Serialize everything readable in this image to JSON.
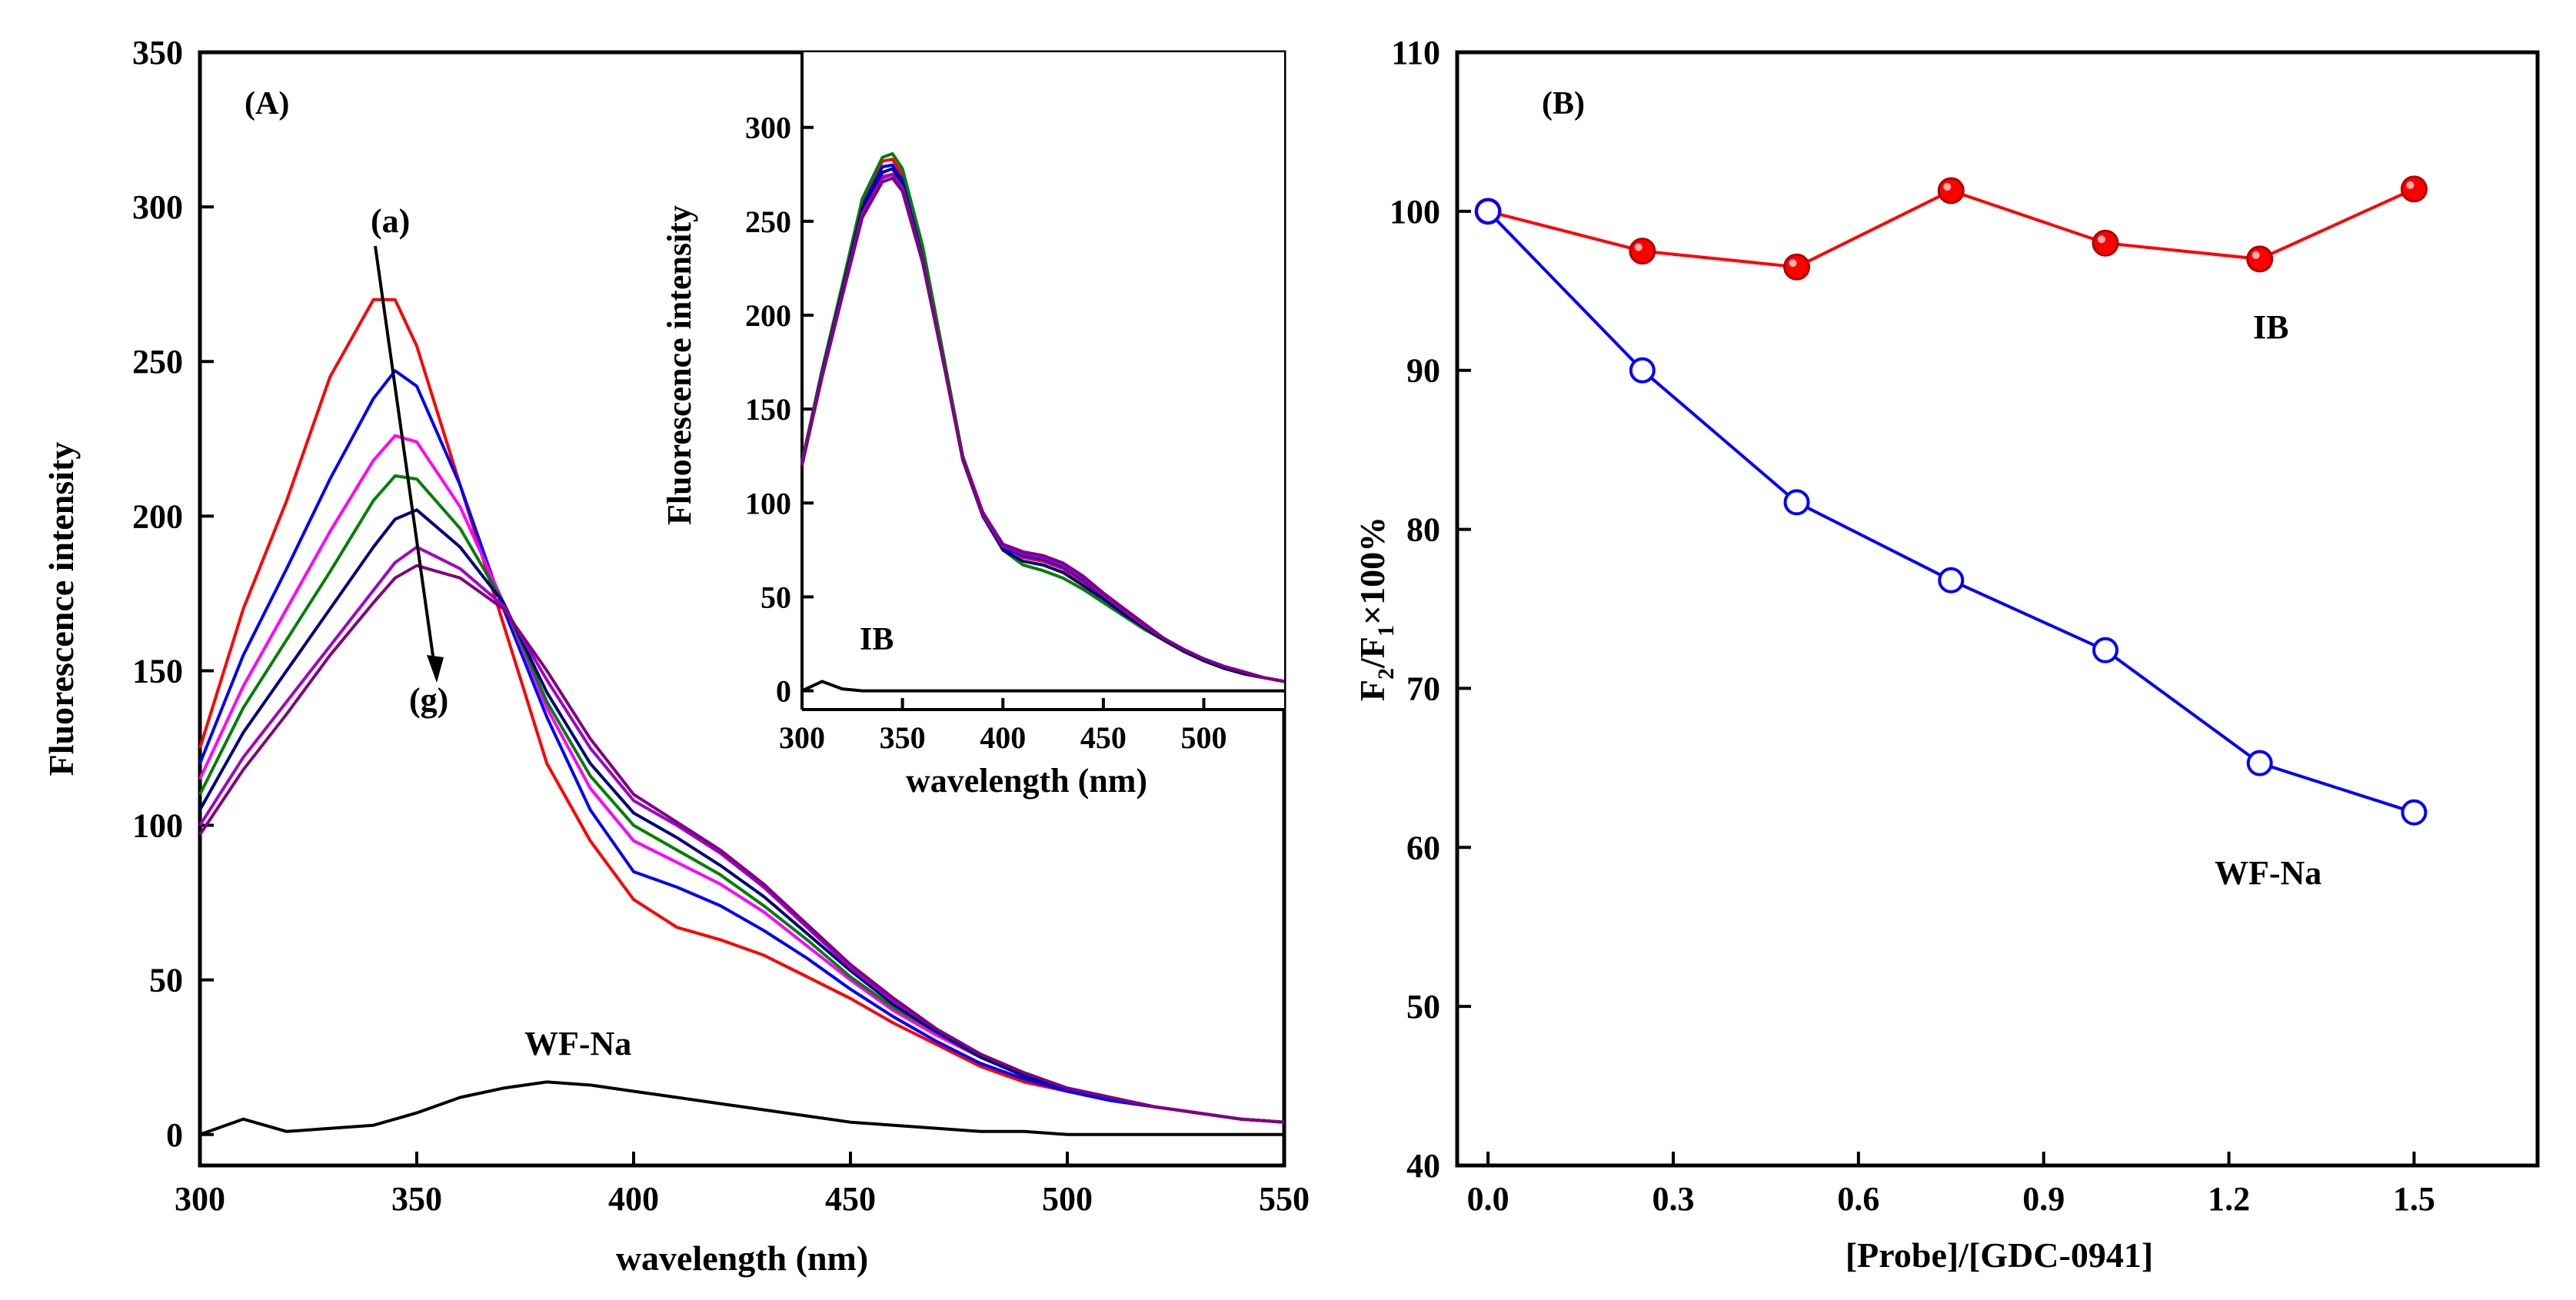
{
  "colors": {
    "a": "#ff0000",
    "b": "#0000ff",
    "c": "#ff00ff",
    "d": "#008000",
    "e": "#000080",
    "f": "#a000c8",
    "g": "#800080",
    "wfna": "#000000",
    "ib_series": "#ff0000",
    "wfna_series": "#0000ff"
  },
  "chart_data": [
    {
      "panel": "A",
      "type": "line",
      "panel_label": "(A)",
      "title": "",
      "xlabel": "wavelength (nm)",
      "ylabel": "Fluorescence intensity",
      "xlim": [
        300,
        550
      ],
      "ylim": [
        -10,
        350
      ],
      "xticks": [
        300,
        350,
        400,
        450,
        500,
        550
      ],
      "yticks": [
        0,
        50,
        100,
        150,
        200,
        250,
        300,
        350
      ],
      "grid": false,
      "annotations": {
        "start": "(a)",
        "end": "(g)",
        "probe": "WF-Na"
      },
      "x": [
        300,
        310,
        320,
        330,
        340,
        345,
        350,
        360,
        370,
        380,
        390,
        400,
        410,
        420,
        430,
        440,
        450,
        460,
        470,
        480,
        490,
        500,
        510,
        520,
        530,
        540,
        550
      ],
      "series": [
        {
          "name": "(a)",
          "color_key": "a",
          "values": [
            125,
            170,
            205,
            245,
            270,
            270,
            255,
            210,
            165,
            120,
            95,
            76,
            67,
            63,
            58,
            51,
            44,
            36,
            29,
            22,
            17,
            14,
            11,
            9,
            7,
            5,
            4
          ]
        },
        {
          "name": "(b)",
          "color_key": "b",
          "values": [
            120,
            155,
            183,
            212,
            238,
            247,
            242,
            210,
            170,
            135,
            105,
            85,
            80,
            74,
            66,
            57,
            47,
            38,
            30,
            23,
            18,
            14,
            11,
            9,
            7,
            5,
            4
          ]
        },
        {
          "name": "(c)",
          "color_key": "c",
          "values": [
            115,
            145,
            170,
            195,
            218,
            226,
            224,
            203,
            172,
            138,
            112,
            95,
            88,
            81,
            72,
            61,
            50,
            40,
            32,
            25,
            19,
            15,
            12,
            9,
            7,
            5,
            4
          ]
        },
        {
          "name": "(d)",
          "color_key": "d",
          "values": [
            110,
            138,
            160,
            182,
            205,
            213,
            212,
            196,
            172,
            140,
            116,
            100,
            92,
            84,
            74,
            63,
            51,
            41,
            33,
            25,
            19,
            15,
            12,
            9,
            7,
            5,
            4
          ]
        },
        {
          "name": "(e)",
          "color_key": "e",
          "values": [
            105,
            130,
            150,
            170,
            190,
            199,
            202,
            190,
            172,
            143,
            120,
            104,
            96,
            87,
            77,
            65,
            53,
            42,
            33,
            25,
            19,
            15,
            12,
            9,
            7,
            5,
            4
          ]
        },
        {
          "name": "(f)",
          "color_key": "f",
          "values": [
            100,
            122,
            140,
            158,
            176,
            185,
            190,
            183,
            171,
            147,
            125,
            108,
            100,
            91,
            80,
            67,
            54,
            43,
            34,
            26,
            20,
            15,
            12,
            9,
            7,
            5,
            4
          ]
        },
        {
          "name": "(g)",
          "color_key": "g",
          "values": [
            97,
            118,
            136,
            155,
            172,
            180,
            184,
            180,
            170,
            150,
            128,
            110,
            101,
            92,
            81,
            68,
            55,
            44,
            34,
            26,
            20,
            15,
            12,
            9,
            7,
            5,
            4
          ]
        },
        {
          "name": "WF-Na",
          "color_key": "wfna",
          "values": [
            0,
            5,
            1,
            2,
            3,
            5,
            7,
            12,
            15,
            17,
            16,
            14,
            12,
            10,
            8,
            6,
            4,
            3,
            2,
            1,
            1,
            0,
            0,
            0,
            0,
            0,
            0
          ]
        }
      ]
    },
    {
      "panel": "A-inset",
      "type": "line",
      "title": "",
      "xlabel": "wavelength (nm)",
      "ylabel": "Fluorescence intensity",
      "xlim": [
        300,
        540
      ],
      "ylim": [
        -10,
        340
      ],
      "xticks": [
        300,
        350,
        400,
        450,
        500
      ],
      "yticks": [
        0,
        50,
        100,
        150,
        200,
        250,
        300
      ],
      "grid": false,
      "annotations": {
        "probe": "IB"
      },
      "x": [
        300,
        310,
        320,
        330,
        340,
        345,
        350,
        360,
        370,
        380,
        390,
        400,
        410,
        420,
        430,
        440,
        450,
        460,
        470,
        480,
        490,
        500,
        510,
        520,
        530,
        540
      ],
      "series": [
        {
          "name": "(a)",
          "color_key": "a",
          "values": [
            122,
            170,
            215,
            260,
            282,
            283,
            275,
            235,
            180,
            125,
            95,
            77,
            71,
            69,
            65,
            58,
            50,
            42,
            35,
            28,
            22,
            17,
            13,
            10,
            7,
            5
          ]
        },
        {
          "name": "(b)",
          "color_key": "b",
          "values": [
            122,
            169,
            214,
            258,
            279,
            280,
            272,
            232,
            178,
            124,
            94,
            76,
            72,
            70,
            66,
            59,
            51,
            43,
            35,
            28,
            22,
            17,
            13,
            10,
            7,
            5
          ]
        },
        {
          "name": "(c)",
          "color_key": "c",
          "values": [
            121,
            168,
            212,
            255,
            274,
            275,
            268,
            230,
            178,
            125,
            95,
            78,
            74,
            72,
            68,
            61,
            52,
            44,
            36,
            28,
            22,
            17,
            13,
            10,
            7,
            5
          ]
        },
        {
          "name": "(d)",
          "color_key": "d",
          "values": [
            122,
            171,
            216,
            262,
            284,
            286,
            278,
            237,
            181,
            125,
            94,
            75,
            67,
            64,
            60,
            54,
            47,
            40,
            33,
            27,
            21,
            16,
            12,
            9,
            7,
            5
          ]
        },
        {
          "name": "(e)",
          "color_key": "e",
          "values": [
            121,
            169,
            213,
            257,
            276,
            278,
            270,
            230,
            177,
            123,
            93,
            75,
            69,
            67,
            63,
            56,
            49,
            41,
            34,
            27,
            21,
            16,
            12,
            9,
            7,
            5
          ]
        },
        {
          "name": "(f)",
          "color_key": "f",
          "values": [
            121,
            168,
            211,
            254,
            273,
            275,
            268,
            229,
            177,
            124,
            94,
            77,
            73,
            71,
            67,
            60,
            51,
            43,
            35,
            28,
            22,
            17,
            13,
            10,
            7,
            5
          ]
        },
        {
          "name": "(g)",
          "color_key": "g",
          "values": [
            120,
            167,
            210,
            252,
            271,
            273,
            266,
            228,
            177,
            124,
            95,
            78,
            74,
            72,
            68,
            61,
            52,
            44,
            36,
            28,
            22,
            17,
            13,
            10,
            7,
            5
          ]
        },
        {
          "name": "IB",
          "color_key": "wfna",
          "values": [
            0,
            5,
            1,
            0,
            0,
            0,
            0,
            0,
            0,
            0,
            0,
            0,
            0,
            0,
            0,
            0,
            0,
            0,
            0,
            0,
            0,
            0,
            0,
            0,
            0,
            0
          ]
        }
      ]
    },
    {
      "panel": "B",
      "type": "line",
      "panel_label": "(B)",
      "title": "",
      "xlabel": "[Probe]/[GDC-0941]",
      "ylabel_main": "F",
      "ylabel_sub2": "2",
      "ylabel_slash": "/F",
      "ylabel_sub1": "1",
      "ylabel_tail": "×100%",
      "xlim": [
        -0.05,
        1.7
      ],
      "ylim": [
        40,
        110
      ],
      "xticks": [
        "0.0",
        "0.3",
        "0.6",
        "0.9",
        "1.2",
        "1.5"
      ],
      "yticks": [
        40,
        50,
        60,
        70,
        80,
        90,
        100,
        110
      ],
      "grid": false,
      "x": [
        0,
        0.25,
        0.5,
        0.75,
        1.0,
        1.25,
        1.5
      ],
      "series": [
        {
          "name": "IB",
          "color_key": "ib_series",
          "marker": "filled-circle",
          "values": [
            100,
            97.5,
            96.5,
            101.3,
            98,
            97,
            101.4
          ]
        },
        {
          "name": "WF-Na",
          "color_key": "wfna_series",
          "marker": "open-circle",
          "values": [
            100,
            90,
            81.7,
            76.8,
            72.4,
            65.3,
            62.2
          ]
        }
      ]
    }
  ]
}
